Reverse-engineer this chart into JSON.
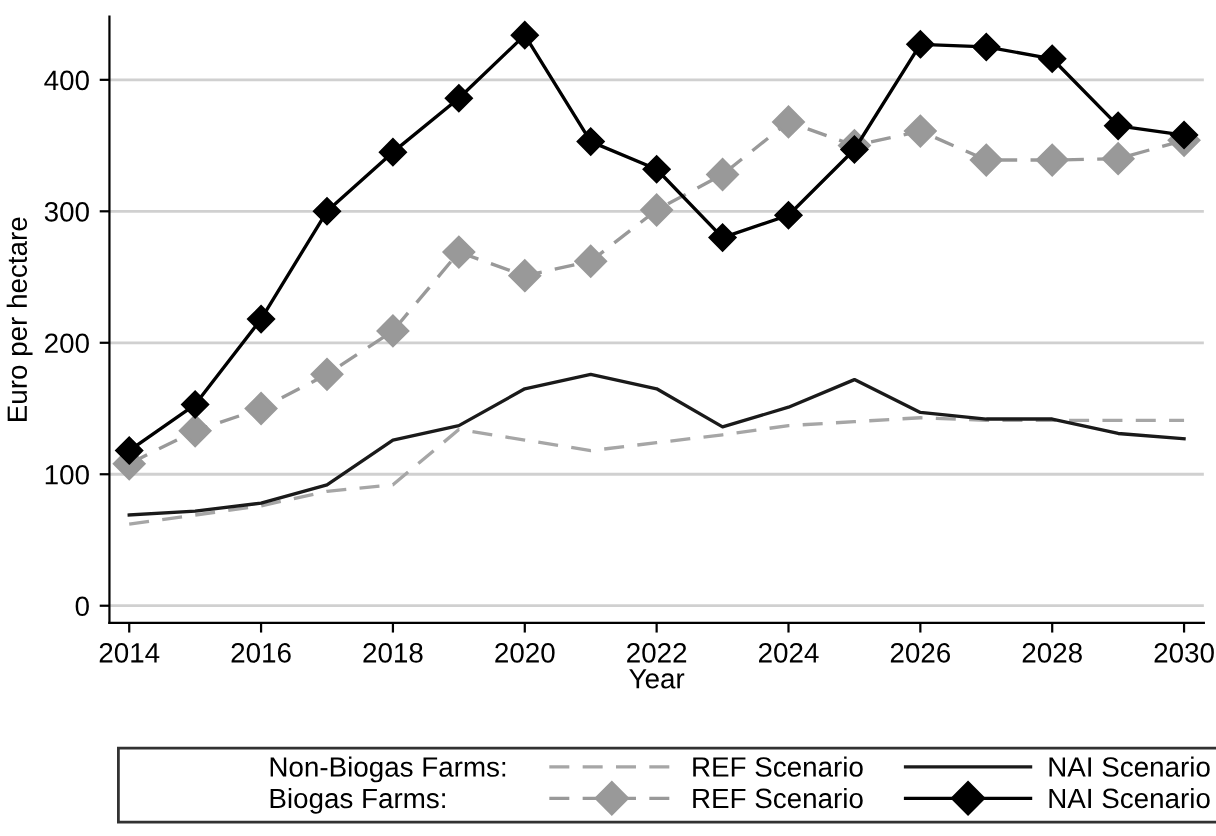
{
  "chart_data": {
    "type": "line",
    "xlabel": "Year",
    "ylabel": "Euro per hectare",
    "x": [
      2014,
      2015,
      2016,
      2017,
      2018,
      2019,
      2020,
      2021,
      2022,
      2023,
      2024,
      2025,
      2026,
      2027,
      2028,
      2029,
      2030
    ],
    "series": [
      {
        "name": "REF Scenario",
        "color": "#a6a6a6",
        "line_style": "dashed",
        "marker": "none",
        "values": [
          62,
          69,
          76,
          87,
          92,
          134,
          126,
          118,
          124,
          130,
          137,
          140,
          143,
          141,
          141,
          141,
          141
        ]
      },
      {
        "name": "NAI Scenario",
        "color": "#1a1a1a",
        "line_style": "solid",
        "marker": "none",
        "values": [
          69,
          72,
          78,
          92,
          126,
          137,
          165,
          176,
          165,
          136,
          151,
          172,
          147,
          142,
          142,
          131,
          127
        ]
      },
      {
        "name": "REF Scenario",
        "color": "#999999",
        "line_style": "dashed",
        "marker": "diamond",
        "values": [
          108,
          133,
          150,
          176,
          209,
          269,
          251,
          262,
          301,
          328,
          368,
          350,
          361,
          339,
          339,
          340,
          354
        ]
      },
      {
        "name": "NAI Scenario",
        "color": "#000000",
        "line_style": "solid",
        "marker": "diamond",
        "values": [
          118,
          153,
          218,
          300,
          345,
          386,
          434,
          353,
          332,
          280,
          297,
          347,
          427,
          425,
          416,
          365,
          358
        ]
      }
    ],
    "annotations": [
      "Non-Biogas Farms:",
      "Biogas Farms:"
    ],
    "xlim": [
      2013.7,
      2030.3
    ],
    "xticks": [
      2014,
      2016,
      2018,
      2020,
      2022,
      2024,
      2026,
      2028,
      2030
    ],
    "ylim": [
      -13,
      448
    ],
    "yticks": [
      0,
      100,
      200,
      300,
      400
    ],
    "grid": "y",
    "legend": "bottom"
  }
}
